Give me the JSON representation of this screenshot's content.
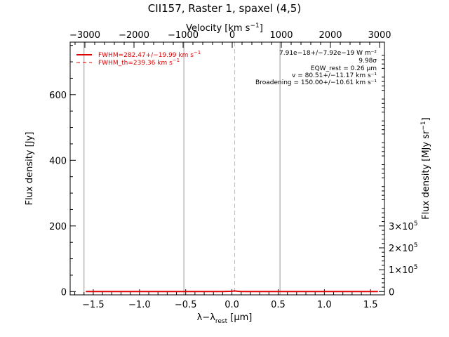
{
  "chart_data": {
    "type": "line",
    "title": "CII157, Raster 1, spaxel (4,5)",
    "xlabel": "λ−λrest [µm]",
    "xlabel_main": "λ−λ",
    "xlabel_sub": "rest",
    "xlabel_unit": " [µm]",
    "ylabel": "Flux density [Jy]",
    "x2label": "Velocity [km s⁻¹]",
    "x2label_main": "Velocity [km s",
    "x2label_sup": "−1",
    "x2label_end": "]",
    "y2label": "Flux density [MJy sr⁻¹]",
    "y2label_main": "Flux density [MJy sr",
    "y2label_sup": "−1",
    "y2label_end": "]",
    "xlim": [
      -1.75,
      1.65
    ],
    "ylim": [
      -10,
      760
    ],
    "x2lim": [
      -3300,
      3100
    ],
    "y2lim": [
      -15000,
      1140000
    ],
    "xticks": [
      -1.5,
      -1.0,
      -0.5,
      0.0,
      0.5,
      1.0,
      1.5
    ],
    "xtick_labels": [
      "−1.5",
      "−1.0",
      "−0.5",
      "0.0",
      "0.5",
      "1.0",
      "1.5"
    ],
    "yticks": [
      0,
      200,
      400,
      600
    ],
    "ytick_labels": [
      "0",
      "200",
      "400",
      "600"
    ],
    "x2ticks": [
      -3000,
      -2000,
      -1000,
      0,
      1000,
      2000,
      3000
    ],
    "x2tick_labels": [
      "−3000",
      "−2000",
      "−1000",
      "0",
      "1000",
      "2000",
      "3000"
    ],
    "y2ticks": [
      0,
      100000,
      200000,
      300000
    ],
    "y2tick_labels": [
      "0",
      "1×10",
      "2×10",
      "3×10"
    ],
    "y2tick_exp": [
      "",
      "5",
      "5",
      "5"
    ],
    "vlines_solid": [
      -1.6,
      -0.52,
      0.52
    ],
    "vlines_dashed": [
      0.03
    ],
    "series": [
      {
        "name": "FWHM=282.47+/−19.99 km s⁻¹",
        "name_main": "FWHM=282.47+/−19.99 km s",
        "name_sup": "−1",
        "style": "solid",
        "color": "#e00000",
        "x": [
          -1.58,
          -1.2,
          -0.8,
          -0.4,
          -0.1,
          0.0,
          0.03,
          0.06,
          0.1,
          0.4,
          0.8,
          1.2,
          1.58
        ],
        "y": [
          0,
          0,
          0,
          0,
          0,
          1,
          2,
          1,
          0,
          0,
          0,
          0,
          0
        ]
      },
      {
        "name": "FWHM_th=239.36 km s⁻¹",
        "name_main": "FWHM_th=239.36 km s",
        "name_sup": "−1",
        "style": "dashed",
        "color": "#e00000",
        "x": [],
        "y": []
      }
    ],
    "annotations": [
      "7.91e−18+/−7.92e−19 W m⁻²",
      "9.98σ",
      "EQW_rest = 0.26 µm",
      "v = 80.51+/−11.17 km s⁻¹",
      "Broadening = 150.00+/−10.61 km s⁻¹"
    ],
    "legend_position": "top-left"
  }
}
